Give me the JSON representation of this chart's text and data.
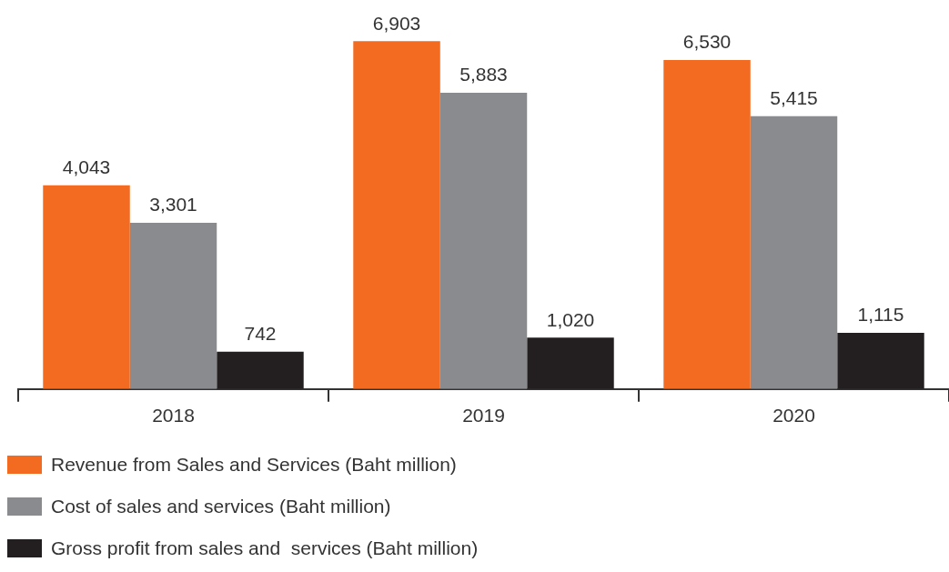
{
  "chart_data": {
    "type": "bar",
    "categories": [
      "2018",
      "2019",
      "2020"
    ],
    "series": [
      {
        "name": "Revenue from Sales and Services (Baht million)",
        "color": "#f26b21",
        "values": [
          4043,
          6903,
          6530
        ],
        "value_labels": [
          "4,043",
          "6,903",
          "6,530"
        ]
      },
      {
        "name": "Cost of sales and services (Baht million)",
        "color": "#8a8b8f",
        "values": [
          3301,
          5883,
          5415
        ],
        "value_labels": [
          "3,301",
          "5,883",
          "5,415"
        ]
      },
      {
        "name": "Gross profit from sales and  services (Baht million)",
        "color": "#231f20",
        "values": [
          742,
          1020,
          1115
        ],
        "value_labels": [
          "742",
          "1,020",
          "1,115"
        ]
      }
    ],
    "legend": "bottom"
  }
}
